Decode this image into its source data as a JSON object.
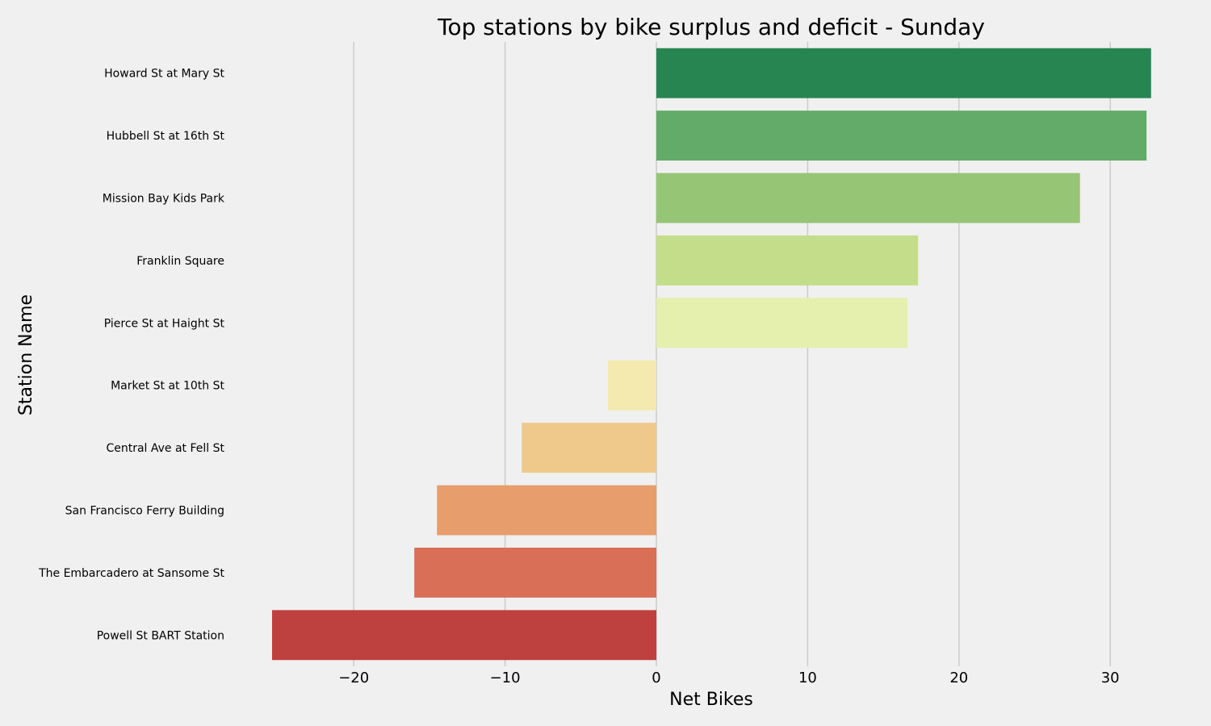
{
  "chart_data": {
    "type": "bar",
    "orientation": "horizontal",
    "title": "Top stations by bike surplus and deficit - Sunday",
    "xlabel": "Net Bikes",
    "ylabel": "Station Name",
    "xlim": [
      -25.4,
      33.0
    ],
    "xticks": [
      -20,
      -10,
      0,
      10,
      20,
      30
    ],
    "xtick_labels": [
      "−20",
      "−10",
      "0",
      "10",
      "20",
      "30"
    ],
    "grid": "vertical",
    "categories": [
      "Howard St at Mary St",
      "Hubbell St at 16th St",
      "Mission Bay Kids Park",
      "Franklin Square",
      "Pierce St at Haight St",
      "Market St at 10th St",
      "Central Ave at Fell St",
      "San Francisco Ferry Building",
      "The Embarcadero at Sansome St",
      "Powell St BART Station"
    ],
    "values": [
      32.7,
      32.4,
      28.0,
      17.3,
      16.6,
      -3.2,
      -8.9,
      -14.5,
      -16.0,
      -25.4
    ],
    "colors": [
      "#278552",
      "#63ab69",
      "#96c575",
      "#c4dd8b",
      "#e5efae",
      "#f4e9ae",
      "#eec98b",
      "#e89d6c",
      "#d86f56",
      "#be403f"
    ]
  }
}
